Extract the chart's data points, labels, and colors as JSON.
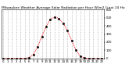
{
  "title": "Milwaukee Weather Average Solar Radiation per Hour W/m2 (Last 24 Hours)",
  "hours": [
    0,
    1,
    2,
    3,
    4,
    5,
    6,
    7,
    8,
    9,
    10,
    11,
    12,
    13,
    14,
    15,
    16,
    17,
    18,
    19,
    20,
    21,
    22,
    23
  ],
  "values": [
    0,
    0,
    0,
    0,
    0,
    2,
    10,
    50,
    140,
    270,
    390,
    480,
    510,
    490,
    430,
    340,
    220,
    100,
    30,
    5,
    0,
    0,
    0,
    0
  ],
  "line_color": "#ff0000",
  "bg_color": "#ffffff",
  "grid_color": "#999999",
  "tick_color": "#000000",
  "ylim": [
    0,
    600
  ],
  "yticks": [
    0,
    100,
    200,
    300,
    400,
    500,
    600
  ],
  "ytick_labels": [
    "0",
    "100",
    "200",
    "300",
    "400",
    "500",
    "600"
  ],
  "title_fontsize": 3.2,
  "axis_fontsize": 2.8,
  "line_width": 0.7,
  "marker_size": 1.8
}
